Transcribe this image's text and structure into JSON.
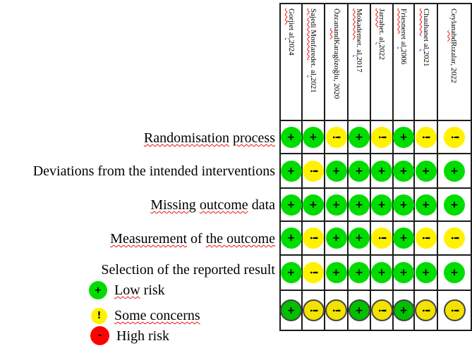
{
  "colors": {
    "low": "#00dc00",
    "some": "#fff200",
    "high": "#ff0000",
    "overall_low": "#00c000",
    "overall_some": "#f2e300",
    "outline": "#454545",
    "grid_line": "#1c1c1c"
  },
  "symbols": {
    "low": "+",
    "some": "!",
    "high": "-"
  },
  "table": {
    "columns": [
      {
        "segments": [
          {
            "text": "Gorji",
            "wavy": "red"
          },
          {
            "text": " et al",
            "wavy": ""
          },
          {
            "text": ",",
            "wavy": "blue"
          },
          {
            "text": " 2024",
            "wavy": ""
          }
        ]
      },
      {
        "segments": [
          {
            "text": "Sajedi Monfared",
            "wavy": "red"
          },
          {
            "text": " et. al",
            "wavy": ""
          },
          {
            "text": ",",
            "wavy": "blue"
          },
          {
            "text": " 2021",
            "wavy": ""
          }
        ]
      },
      {
        "segments": [
          {
            "text": "Özcan ",
            "wavy": ""
          },
          {
            "text": "and",
            "wavy": "red"
          },
          {
            "text": " Karagözoğlu, 2020",
            "wavy": ""
          }
        ]
      },
      {
        "segments": [
          {
            "text": "Mokadem",
            "wavy": "red"
          },
          {
            "text": " et. al",
            "wavy": ""
          },
          {
            "text": ",",
            "wavy": "blue"
          },
          {
            "text": " 2017",
            "wavy": ""
          }
        ]
      },
      {
        "segments": [
          {
            "text": "Jarrah",
            "wavy": "red"
          },
          {
            "text": " et. al",
            "wavy": ""
          },
          {
            "text": ",",
            "wavy": "blue"
          },
          {
            "text": " 2022",
            "wavy": ""
          }
        ]
      },
      {
        "segments": [
          {
            "text": "Friesner",
            "wavy": "red"
          },
          {
            "text": " et al",
            "wavy": ""
          },
          {
            "text": ",",
            "wavy": "blue"
          },
          {
            "text": " 2006",
            "wavy": ""
          }
        ]
      },
      {
        "segments": [
          {
            "text": "Chauhan",
            "wavy": "red"
          },
          {
            "text": " et al",
            "wavy": ""
          },
          {
            "text": ",",
            "wavy": "blue"
          },
          {
            "text": " 2021",
            "wavy": ""
          }
        ]
      },
      {
        "segments": [
          {
            "text": "Ceylan ",
            "wavy": ""
          },
          {
            "text": "abd",
            "wavy": "red"
          },
          {
            "text": " Rızalar, 2022",
            "wavy": ""
          }
        ]
      }
    ],
    "rows": [
      {
        "overall": false,
        "label_segments": [
          {
            "text": "Randomisation",
            "wavy": "red"
          },
          {
            "text": " ",
            "wavy": ""
          },
          {
            "text": "process",
            "wavy": "red"
          }
        ],
        "cells": [
          "low",
          "low",
          "some",
          "low",
          "some",
          "low",
          "some",
          "some"
        ]
      },
      {
        "overall": false,
        "label_segments": [
          {
            "text": "Deviations from the intended interventions",
            "wavy": ""
          }
        ],
        "cells": [
          "low",
          "some",
          "low",
          "low",
          "low",
          "low",
          "low",
          "low"
        ]
      },
      {
        "overall": false,
        "label_segments": [
          {
            "text": "Missing",
            "wavy": "red"
          },
          {
            "text": " ",
            "wavy": ""
          },
          {
            "text": "outcome",
            "wavy": "red"
          },
          {
            "text": " data",
            "wavy": ""
          }
        ],
        "cells": [
          "low",
          "low",
          "low",
          "low",
          "low",
          "low",
          "low",
          "low"
        ]
      },
      {
        "overall": false,
        "label_segments": [
          {
            "text": "Measurement",
            "wavy": "red"
          },
          {
            "text": " of ",
            "wavy": ""
          },
          {
            "text": "the outcome",
            "wavy": "red"
          }
        ],
        "cells": [
          "low",
          "some",
          "low",
          "low",
          "some",
          "low",
          "some",
          "some"
        ]
      },
      {
        "overall": false,
        "label_segments": [
          {
            "text": "Selection of the reported result",
            "wavy": ""
          }
        ],
        "cells": [
          "low",
          "some",
          "low",
          "low",
          "low",
          "low",
          "low",
          "low"
        ]
      },
      {
        "overall": true,
        "label_segments": [],
        "cells": [
          "low",
          "some",
          "some",
          "low",
          "some",
          "low",
          "some",
          "some"
        ]
      }
    ]
  },
  "legend": [
    {
      "risk": "low",
      "symbol": "+",
      "segments": [
        {
          "text": "Low",
          "wavy": "red"
        },
        {
          "text": " risk",
          "wavy": ""
        }
      ]
    },
    {
      "risk": "some",
      "symbol": "!",
      "segments": [
        {
          "text": "Some concerns",
          "wavy": "red"
        }
      ]
    },
    {
      "risk": "high",
      "symbol": "-",
      "segments": [
        {
          "text": "High risk",
          "wavy": ""
        }
      ]
    }
  ],
  "chart_data": {
    "type": "table",
    "title": "",
    "columns": [
      "Gorji et al, 2024",
      "Sajedi Monfared et. al, 2021",
      "Özcan and Karagözoğlu, 2020",
      "Mokadem et. al, 2017",
      "Jarrah et. al, 2022",
      "Friesner et al, 2006",
      "Chauhan et al, 2021",
      "Ceylan abd Rızalar, 2022"
    ],
    "rows": [
      "Randomisation process",
      "Deviations from the intended interventions",
      "Missing outcome data",
      "Measurement of the outcome",
      "Selection of the reported result",
      ""
    ],
    "values": [
      [
        "low",
        "low",
        "some",
        "low",
        "some",
        "low",
        "some",
        "some"
      ],
      [
        "low",
        "some",
        "low",
        "low",
        "low",
        "low",
        "low",
        "low"
      ],
      [
        "low",
        "low",
        "low",
        "low",
        "low",
        "low",
        "low",
        "low"
      ],
      [
        "low",
        "some",
        "low",
        "low",
        "some",
        "low",
        "some",
        "some"
      ],
      [
        "low",
        "some",
        "low",
        "low",
        "low",
        "low",
        "low",
        "low"
      ],
      [
        "low",
        "some",
        "some",
        "low",
        "some",
        "low",
        "some",
        "some"
      ]
    ],
    "legend": [
      "Low risk",
      "Some concerns",
      "High risk"
    ],
    "legend_position": "bottom-left"
  }
}
